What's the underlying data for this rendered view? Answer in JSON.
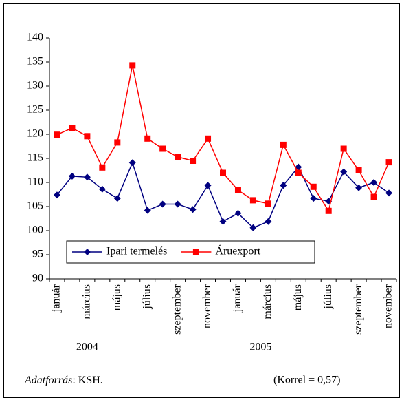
{
  "chart_data": {
    "type": "line",
    "categories": [
      "január",
      null,
      "március",
      null,
      "május",
      null,
      "július",
      null,
      "szeptember",
      null,
      "november",
      null,
      "január",
      null,
      "március",
      null,
      "május",
      null,
      "július",
      null,
      "szeptember",
      null,
      "november"
    ],
    "year_labels": [
      "2004",
      "2005"
    ],
    "series": [
      {
        "name": "Ipari termelés",
        "color": "#000080",
        "marker": "diamond",
        "values": [
          107.4,
          111.3,
          111.1,
          108.6,
          106.7,
          114.1,
          104.2,
          105.5,
          105.5,
          104.4,
          109.4,
          101.9,
          103.6,
          100.6,
          101.9,
          109.4,
          113.2,
          106.7,
          106.1,
          112.2,
          108.9,
          110.0,
          107.8
        ]
      },
      {
        "name": "Áruexport",
        "color": "#ff0000",
        "marker": "square",
        "values": [
          119.9,
          121.3,
          119.6,
          113.1,
          118.3,
          134.3,
          119.1,
          117.0,
          115.3,
          114.5,
          119.1,
          112.0,
          108.4,
          106.3,
          105.6,
          117.8,
          112.0,
          109.1,
          104.1,
          117.0,
          112.5,
          107.0,
          114.2
        ]
      }
    ],
    "ylim": [
      90,
      140
    ],
    "yticks": [
      90,
      95,
      100,
      105,
      110,
      115,
      120,
      125,
      130,
      135,
      140
    ],
    "grid": false,
    "legend": "bottom-left",
    "source": {
      "label": "Adatforrás",
      "text": ": KSH."
    },
    "note": "(Korrel = 0,57)"
  }
}
